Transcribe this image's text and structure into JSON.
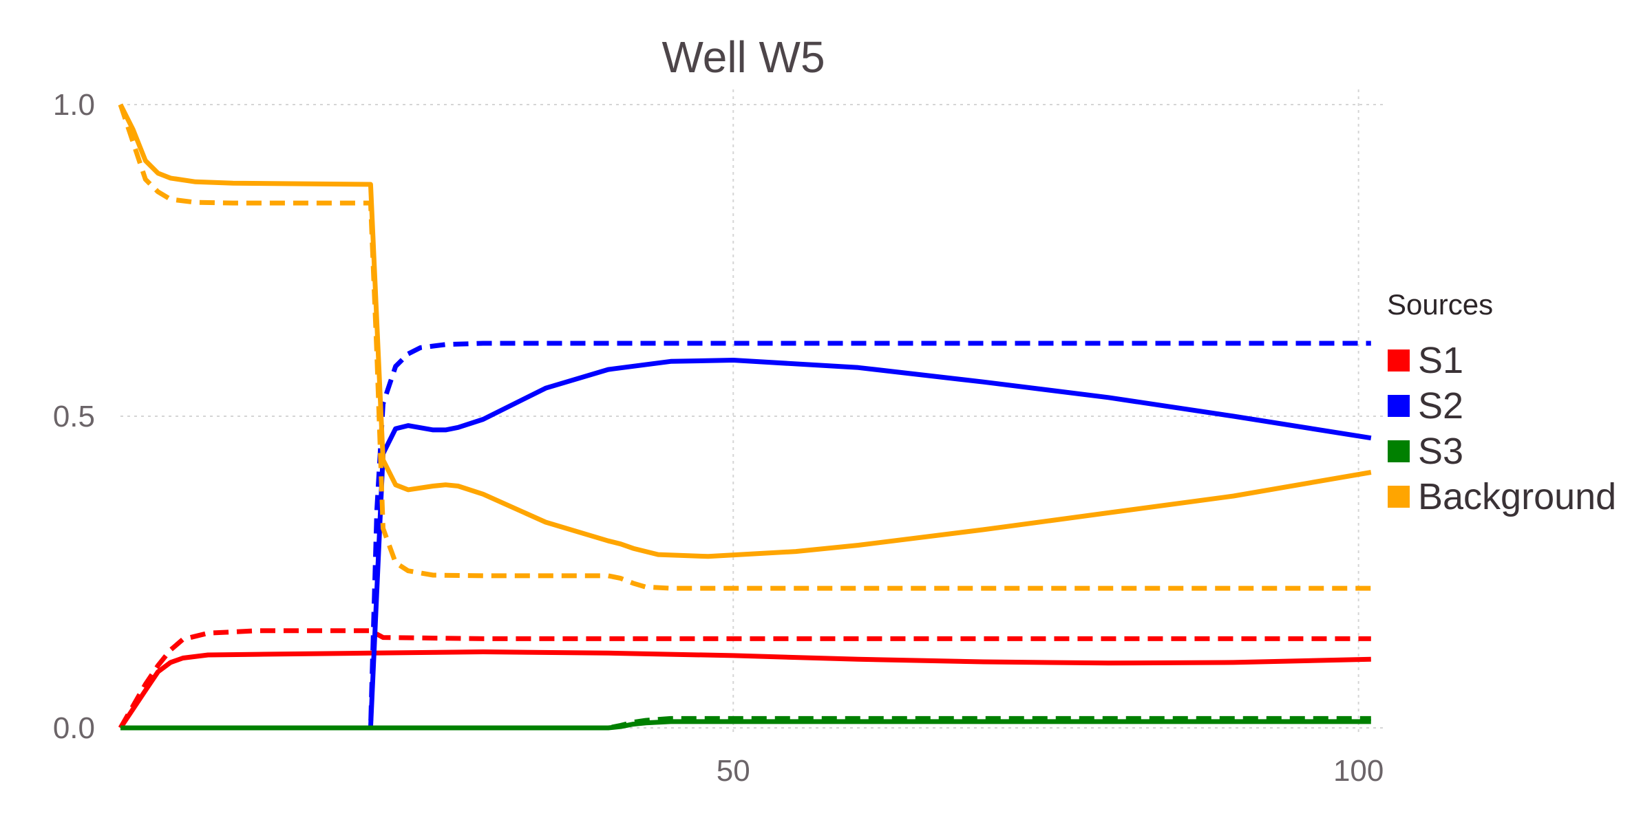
{
  "chart_data": {
    "type": "line",
    "title": "Well W5",
    "xlabel": "",
    "ylabel": "",
    "xlim": [
      1,
      102
    ],
    "ylim": [
      0,
      1
    ],
    "grid": true,
    "x_ticks": [
      {
        "value": 50,
        "label": "50"
      },
      {
        "value": 100,
        "label": "100"
      }
    ],
    "y_ticks": [
      {
        "value": 0,
        "label": "0.0"
      },
      {
        "value": 0.5,
        "label": "0.5"
      },
      {
        "value": 1,
        "label": "1.0"
      }
    ],
    "legend": {
      "title": "Sources",
      "placement": "right",
      "entries": [
        {
          "label": "S1",
          "color": "#ff0000"
        },
        {
          "label": "S2",
          "color": "#0000ff"
        },
        {
          "label": "S3",
          "color": "#008000"
        },
        {
          "label": "Background",
          "color": "#ffa500"
        }
      ]
    },
    "series": [
      {
        "source": "S1",
        "color": "#ff0000",
        "style": "solid",
        "x": [
          1,
          3,
          4,
          5,
          6,
          8,
          12,
          21,
          30,
          40,
          50,
          60,
          70,
          80,
          90,
          101
        ],
        "y": [
          0,
          0.06,
          0.09,
          0.105,
          0.112,
          0.117,
          0.118,
          0.12,
          0.122,
          0.12,
          0.116,
          0.11,
          0.106,
          0.104,
          0.105,
          0.11
        ]
      },
      {
        "source": "S1",
        "color": "#ff0000",
        "style": "dashed",
        "x": [
          1,
          3,
          4,
          5,
          6,
          8,
          12,
          21,
          22,
          30,
          101
        ],
        "y": [
          0,
          0.07,
          0.1,
          0.125,
          0.142,
          0.152,
          0.156,
          0.156,
          0.145,
          0.143,
          0.143
        ]
      },
      {
        "source": "S2",
        "color": "#0000ff",
        "style": "solid",
        "x": [
          1,
          21,
          22,
          23,
          24,
          26,
          27,
          28,
          30,
          35,
          40,
          45,
          50,
          60,
          70,
          80,
          90,
          101
        ],
        "y": [
          0,
          0,
          0.44,
          0.48,
          0.485,
          0.478,
          0.478,
          0.482,
          0.495,
          0.545,
          0.575,
          0.588,
          0.59,
          0.578,
          0.555,
          0.53,
          0.5,
          0.465
        ]
      },
      {
        "source": "S2",
        "color": "#0000ff",
        "style": "dashed",
        "x": [
          1,
          21,
          21.5,
          22,
          23,
          24,
          25,
          27,
          30,
          40,
          101
        ],
        "y": [
          0,
          0,
          0.35,
          0.52,
          0.58,
          0.6,
          0.61,
          0.615,
          0.617,
          0.617,
          0.617
        ]
      },
      {
        "source": "S3",
        "color": "#008000",
        "style": "solid",
        "x": [
          1,
          21,
          40,
          41,
          42,
          43,
          45,
          60,
          101
        ],
        "y": [
          0,
          0,
          0,
          0.002,
          0.006,
          0.008,
          0.01,
          0.01,
          0.01
        ]
      },
      {
        "source": "S3",
        "color": "#008000",
        "style": "dashed",
        "x": [
          1,
          21,
          40,
          41,
          42,
          43,
          45,
          60,
          101
        ],
        "y": [
          0,
          0,
          0,
          0.004,
          0.009,
          0.012,
          0.015,
          0.015,
          0.015
        ]
      },
      {
        "source": "Background",
        "color": "#ffa500",
        "style": "solid",
        "x": [
          1,
          2,
          3,
          4,
          5,
          7,
          10,
          21,
          22,
          23,
          24,
          26,
          27,
          28,
          30,
          35,
          40,
          41,
          42,
          44,
          48,
          55,
          60,
          70,
          80,
          90,
          101
        ],
        "y": [
          1,
          0.96,
          0.91,
          0.89,
          0.882,
          0.876,
          0.874,
          0.872,
          0.43,
          0.39,
          0.382,
          0.388,
          0.39,
          0.388,
          0.375,
          0.33,
          0.3,
          0.295,
          0.288,
          0.278,
          0.275,
          0.283,
          0.293,
          0.318,
          0.345,
          0.372,
          0.41
        ]
      },
      {
        "source": "Background",
        "color": "#ffa500",
        "style": "dashed",
        "x": [
          1,
          2,
          3,
          4,
          5,
          7,
          10,
          21,
          21.5,
          22,
          23,
          24,
          26,
          30,
          40,
          41,
          42,
          43,
          45,
          60,
          101
        ],
        "y": [
          1,
          0.94,
          0.88,
          0.86,
          0.848,
          0.843,
          0.842,
          0.842,
          0.6,
          0.32,
          0.265,
          0.252,
          0.245,
          0.244,
          0.244,
          0.24,
          0.232,
          0.226,
          0.224,
          0.224,
          0.224
        ]
      }
    ]
  }
}
